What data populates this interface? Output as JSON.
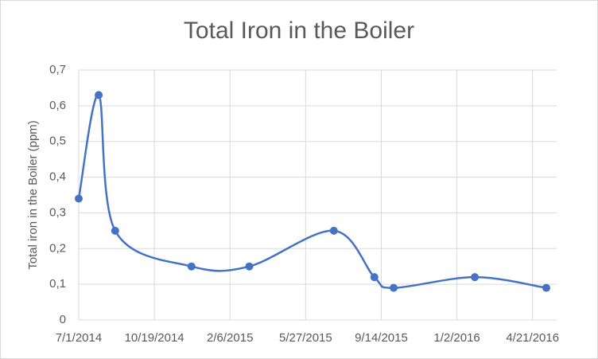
{
  "chart_data": {
    "type": "line",
    "title": "Total Iron in the Boiler",
    "y_label": "Total iron in the Boiler (ppm)",
    "x": [
      "7/1/2014",
      "7/30/2014",
      "8/23/2014",
      "12/12/2014",
      "3/6/2015",
      "7/7/2015",
      "9/4/2015",
      "10/2/2015",
      "1/28/2016",
      "5/11/2016"
    ],
    "series": [
      {
        "name": "Total iron in the Boiler (ppm)",
        "color": "#4472c4",
        "values": [
          0.34,
          0.63,
          0.25,
          0.15,
          0.15,
          0.25,
          0.12,
          0.09,
          0.12,
          0.09
        ]
      }
    ],
    "xlim": [
      "7/1/2014",
      "5/11/2016"
    ],
    "xticks": [
      "7/1/2014",
      "10/19/2014",
      "2/6/2015",
      "5/27/2015",
      "9/14/2015",
      "1/2/2016",
      "4/21/2016"
    ],
    "ylim": [
      0,
      0.7
    ],
    "yticks": [
      0,
      {
        "value": 0.1,
        "label": "0,1"
      },
      {
        "value": 0.2,
        "label": "0,2"
      },
      {
        "value": 0.3,
        "label": "0,3"
      },
      {
        "value": 0.4,
        "label": "0,4"
      },
      {
        "value": 0.5,
        "label": "0,5"
      },
      {
        "value": 0.6,
        "label": "0,6"
      },
      {
        "value": 0.7,
        "label": "0,7"
      }
    ],
    "grid": true,
    "smooth": true
  }
}
